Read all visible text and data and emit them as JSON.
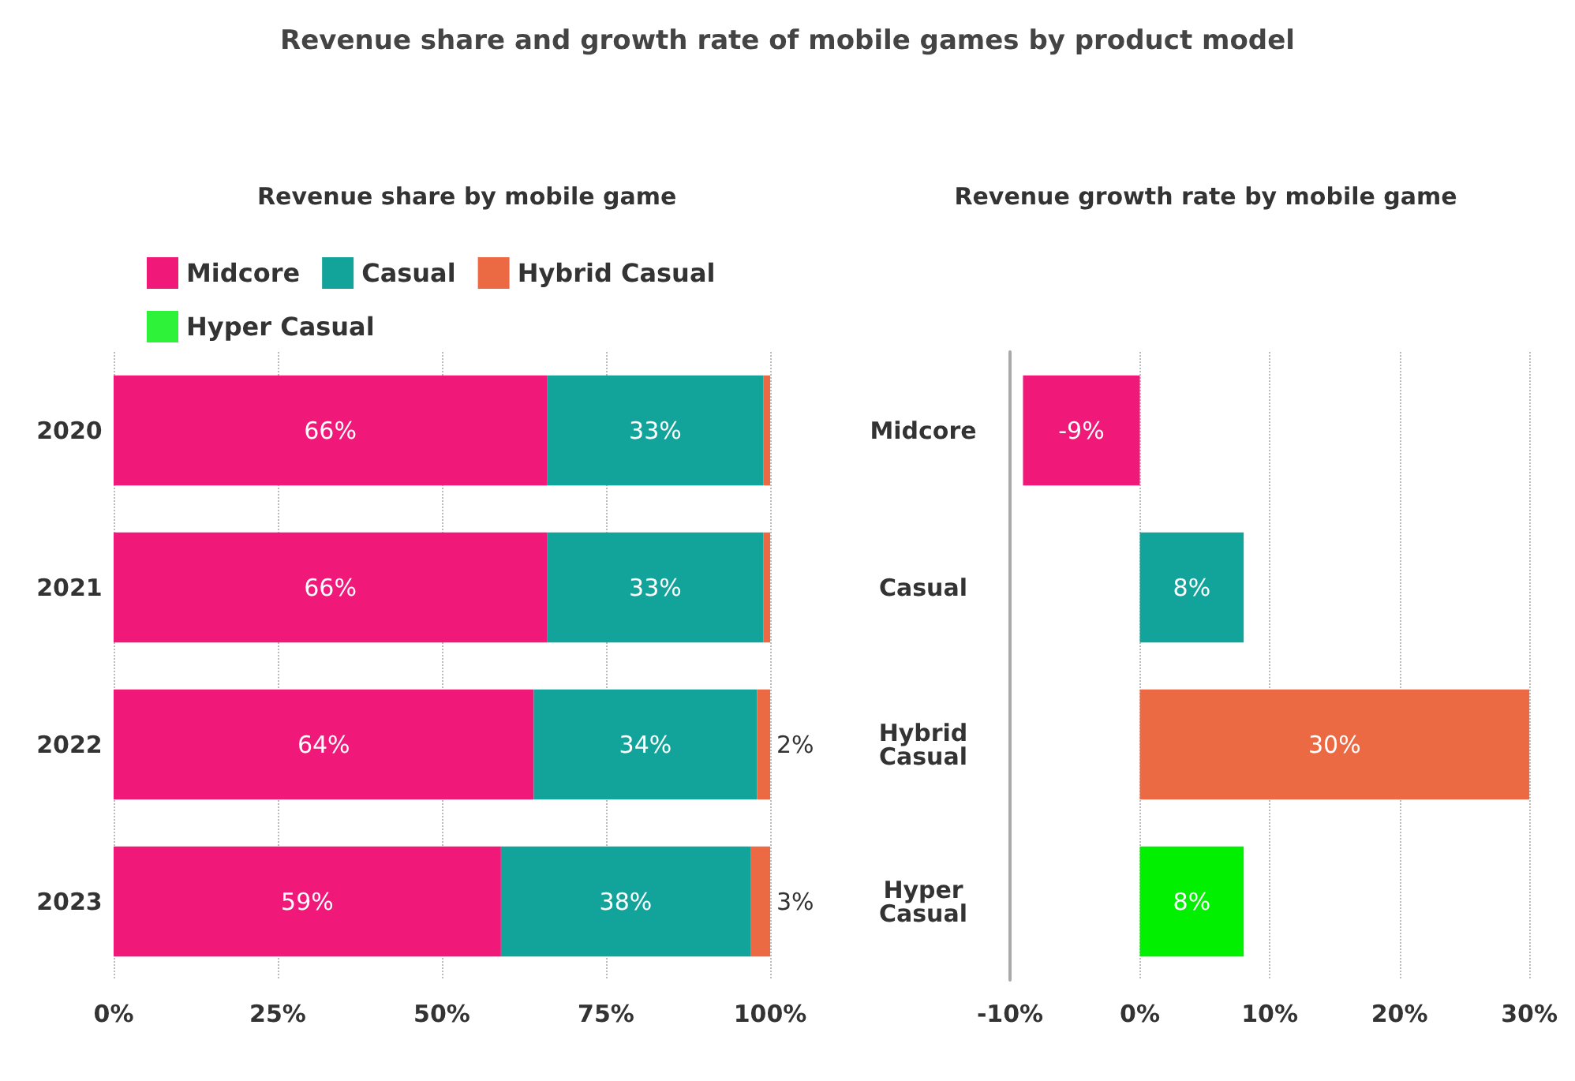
{
  "chart_data": [
    {
      "type": "bar",
      "title": "Revenue share by mobile game",
      "annotations": [
        "Revenue share and growth rate of mobile games by product model"
      ],
      "orientation": "horizontal",
      "stacked": true,
      "categories": [
        "2020",
        "2021",
        "2022",
        "2023"
      ],
      "series": [
        {
          "name": "Midcore",
          "color": "#f0197a",
          "values": [
            66,
            66,
            64,
            59
          ],
          "value_labels": [
            "66%",
            "66%",
            "64%",
            "59%"
          ]
        },
        {
          "name": "Casual",
          "color": "#12a39a",
          "values": [
            33,
            33,
            34,
            38
          ],
          "value_labels": [
            "33%",
            "33%",
            "34%",
            "38%"
          ]
        },
        {
          "name": "Hybrid Casual",
          "color": "#ec6a43",
          "values": [
            1,
            1,
            2,
            3
          ],
          "value_labels": [
            null,
            null,
            "2%",
            "3%"
          ]
        },
        {
          "name": "Hyper Casual",
          "color": "#2ef23a",
          "values": [
            0,
            0,
            0,
            0
          ]
        }
      ],
      "xlim": [
        0,
        100
      ],
      "xticks": [
        {
          "value": 0,
          "label": "0%"
        },
        {
          "value": 25,
          "label": "25%"
        },
        {
          "value": 50,
          "label": "50%"
        },
        {
          "value": 75,
          "label": "75%"
        },
        {
          "value": 100,
          "label": "100%"
        }
      ],
      "grid": "x",
      "legend": "top left"
    },
    {
      "type": "bar",
      "title": "Revenue growth rate by mobile game",
      "orientation": "horizontal",
      "categories": [
        "Midcore",
        "Casual",
        "Hybrid\nCasual",
        "Hyper\nCasual"
      ],
      "values": [
        -9,
        8,
        30,
        8
      ],
      "colors": [
        "#f0197a",
        "#12a39a",
        "#ec6a43",
        "#00f000"
      ],
      "value_labels": [
        "-9%",
        "8%",
        "30%",
        "8%"
      ],
      "xlim": [
        -10,
        30
      ],
      "xticks": [
        {
          "value": -10,
          "label": "-10%"
        },
        {
          "value": 0,
          "label": "0%"
        },
        {
          "value": 10,
          "label": "10%"
        },
        {
          "value": 20,
          "label": "20%"
        },
        {
          "value": 30,
          "label": "30%"
        }
      ],
      "grid": "x"
    }
  ]
}
